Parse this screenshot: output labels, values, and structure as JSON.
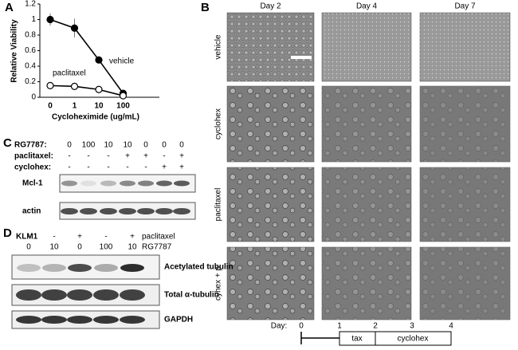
{
  "chart_data": {
    "type": "line",
    "x_label": "Cycloheximide (ug/mL)",
    "y_label": "Relative Viability",
    "categories": [
      "0",
      "1",
      "10",
      "100"
    ],
    "series": [
      {
        "name": "vehicle",
        "color": "#000000",
        "marker": "filled",
        "values": [
          1.0,
          0.89,
          0.48,
          0.05
        ],
        "errors": [
          0.08,
          0.12,
          0.02,
          0.01
        ]
      },
      {
        "name": "paclitaxel",
        "color": "#000000",
        "marker": "open",
        "values": [
          0.15,
          0.14,
          0.1,
          0.02
        ],
        "errors": [
          0.01,
          0.01,
          0.01,
          0.01
        ]
      }
    ],
    "ylim": [
      0,
      1.2
    ],
    "yticks": [
      0,
      0.2,
      0.4,
      0.6,
      0.8,
      1,
      1.2
    ]
  },
  "figure": {
    "A": {
      "label": "A"
    },
    "B": {
      "label": "B",
      "columns": [
        "Day 2",
        "Day 4",
        "Day 7"
      ],
      "rows": [
        "vehicle",
        "cyclohex",
        "paclitaxel",
        "cyhex + p"
      ],
      "timeline": {
        "prefix": "Day:",
        "days": [
          "0",
          "1",
          "2",
          "3",
          "4"
        ],
        "boxes": [
          "tax",
          "cyclohex"
        ]
      }
    },
    "C": {
      "label": "C",
      "header_rows": [
        {
          "label": "RG7787:",
          "cells": [
            "0",
            "100",
            "10",
            "10",
            "0",
            "0",
            "0"
          ]
        },
        {
          "label": "paclitaxel:",
          "cells": [
            "-",
            "-",
            "-",
            "+",
            "+",
            "-",
            "+"
          ]
        },
        {
          "label": "cyclohex:",
          "cells": [
            "-",
            "-",
            "-",
            "-",
            "-",
            "+",
            "+"
          ]
        }
      ],
      "blots": [
        "Mcl-1",
        "actin"
      ]
    },
    "D": {
      "label": "D",
      "cell_line": "KLM1",
      "header_rows": [
        {
          "label": "paclitaxel",
          "cells": [
            "-",
            "-",
            "+",
            "-",
            "+"
          ]
        },
        {
          "label": "RG7787",
          "cells": [
            "0",
            "10",
            "0",
            "100",
            "10"
          ]
        }
      ],
      "blots": [
        "Acetylated tubulin",
        "Total α-tubulin",
        "GAPDH"
      ]
    }
  }
}
